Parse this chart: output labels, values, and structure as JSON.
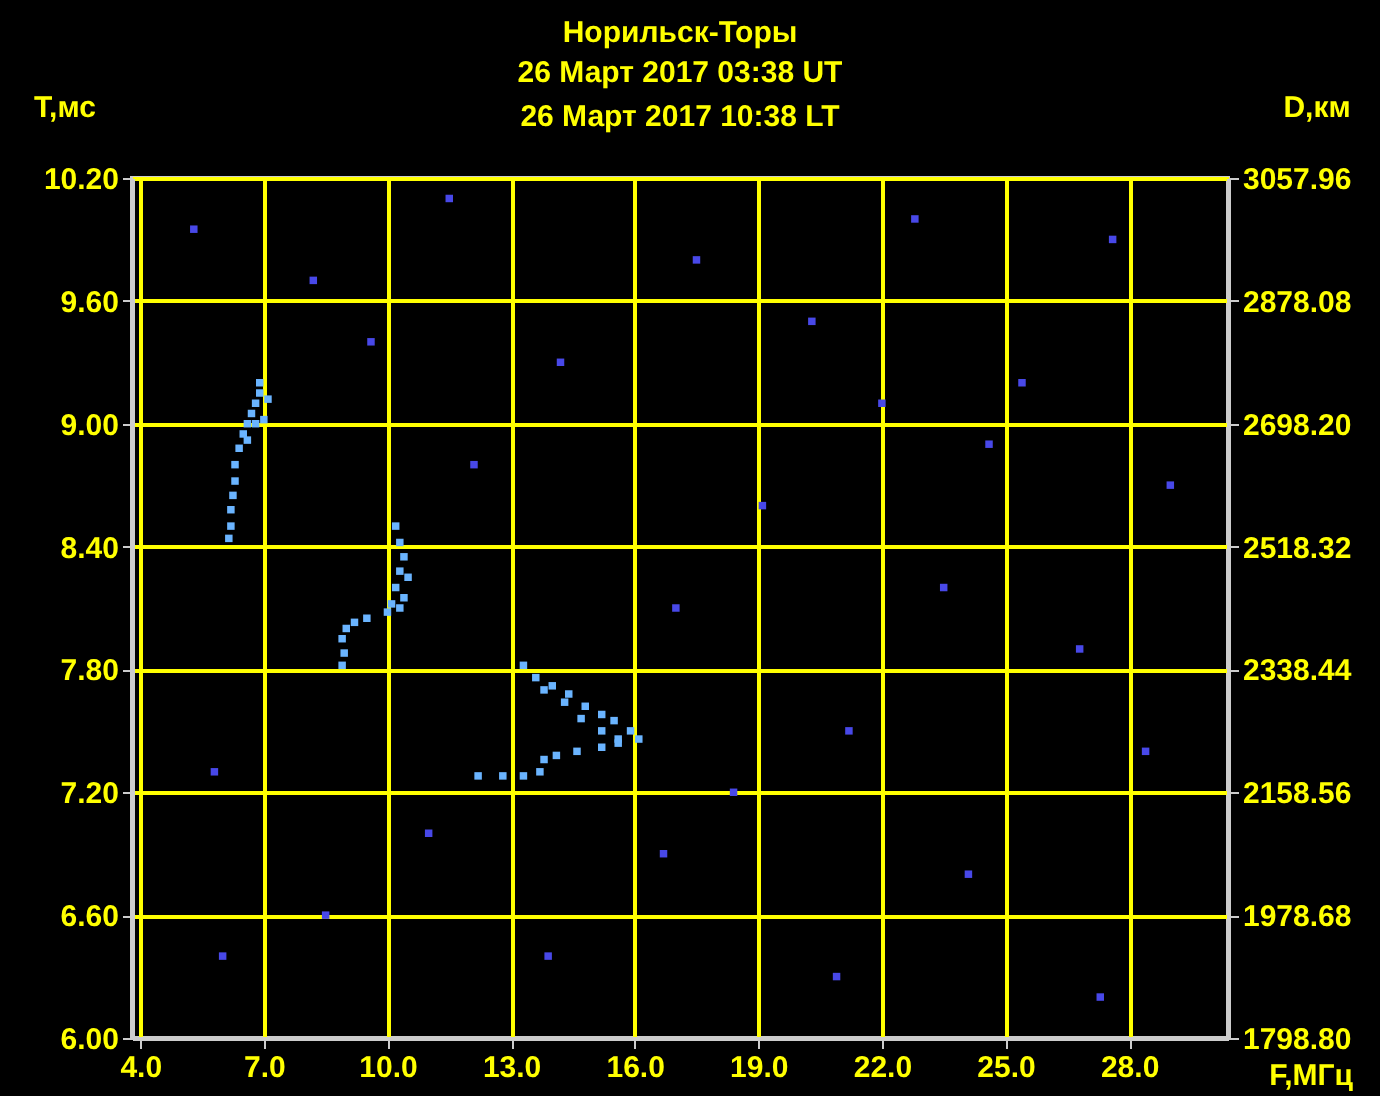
{
  "chart_data": {
    "type": "scatter",
    "title": "Норильск-Торы",
    "subtitle": "26 Март 2017 03:38 UT\n26 Март 2017 10:38 LT",
    "xlabel": "F,МГц",
    "ylabel": "T,мс",
    "y2label": "D,км",
    "xlim": [
      3.8,
      30.4
    ],
    "xticks": [
      {
        "value": 4,
        "label": "4.0"
      },
      {
        "value": 7,
        "label": "7.0"
      },
      {
        "value": 10,
        "label": "10.0"
      },
      {
        "value": 13,
        "label": "13.0"
      },
      {
        "value": 16,
        "label": "16.0"
      },
      {
        "value": 19,
        "label": "19.0"
      },
      {
        "value": 22,
        "label": "22.0"
      },
      {
        "value": 25,
        "label": "25.0"
      },
      {
        "value": 28,
        "label": "28.0"
      }
    ],
    "ylim": [
      6.0,
      10.2
    ],
    "yticks": [
      {
        "value": 6.0,
        "label": "6.00"
      },
      {
        "value": 6.6,
        "label": "6.60"
      },
      {
        "value": 7.2,
        "label": "7.20"
      },
      {
        "value": 7.8,
        "label": "7.80"
      },
      {
        "value": 8.4,
        "label": "8.40"
      },
      {
        "value": 9.0,
        "label": "9.00"
      },
      {
        "value": 9.6,
        "label": "9.60"
      },
      {
        "value": 10.2,
        "label": "10.20"
      }
    ],
    "y2lim": [
      1798.8,
      3057.96
    ],
    "y2ticks": [
      {
        "value": 1798.8,
        "label": "1798.80"
      },
      {
        "value": 1978.68,
        "label": "1978.68"
      },
      {
        "value": 2158.56,
        "label": "2158.56"
      },
      {
        "value": 2338.44,
        "label": "2338.44"
      },
      {
        "value": 2518.32,
        "label": "2518.32"
      },
      {
        "value": 2698.2,
        "label": "2698.20"
      },
      {
        "value": 2878.08,
        "label": "2878.08"
      },
      {
        "value": 3057.96,
        "label": "3057.96"
      }
    ],
    "grid": true,
    "marker": "square",
    "series": [
      {
        "color": "#6ab4ff",
        "x": [
          6.9,
          6.8,
          6.7,
          6.6,
          6.8,
          7.0,
          6.5,
          6.4,
          6.3,
          6.3,
          6.25,
          6.2,
          6.2,
          6.15,
          7.1,
          6.9,
          6.6,
          10.2,
          10.3,
          10.4,
          10.3,
          10.5,
          10.2,
          10.4,
          10.1,
          10.0,
          10.3,
          9.5,
          9.2,
          9.0,
          8.9,
          8.95,
          8.9,
          13.3,
          13.6,
          14.0,
          14.4,
          14.8,
          15.2,
          15.5,
          15.9,
          16.1,
          15.6,
          15.2,
          14.6,
          14.1,
          13.8,
          13.7,
          13.3,
          12.8,
          12.2,
          13.8,
          14.3,
          14.7,
          15.2,
          15.6
        ],
        "values": [
          9.15,
          9.1,
          9.05,
          9.0,
          9.0,
          9.02,
          8.95,
          8.88,
          8.8,
          8.72,
          8.65,
          8.58,
          8.5,
          8.44,
          9.12,
          9.2,
          8.92,
          8.5,
          8.42,
          8.35,
          8.28,
          8.25,
          8.2,
          8.15,
          8.12,
          8.08,
          8.1,
          8.05,
          8.03,
          8.0,
          7.95,
          7.88,
          7.82,
          7.82,
          7.76,
          7.72,
          7.68,
          7.62,
          7.58,
          7.55,
          7.5,
          7.46,
          7.44,
          7.42,
          7.4,
          7.38,
          7.36,
          7.3,
          7.28,
          7.28,
          7.28,
          7.7,
          7.64,
          7.56,
          7.5,
          7.46
        ]
      },
      {
        "color": "#4848e8",
        "x": [
          5.3,
          8.2,
          11.5,
          14.2,
          17.5,
          20.3,
          22.8,
          25.4,
          27.6,
          29.0,
          19.1,
          23.5,
          26.8,
          21.2,
          18.4,
          11.0,
          5.8,
          8.5,
          13.9,
          16.7,
          20.9,
          24.1,
          27.3,
          28.4,
          9.6,
          17.0,
          24.6,
          12.1,
          6.0,
          22.0
        ],
        "values": [
          9.95,
          9.7,
          10.1,
          9.3,
          9.8,
          9.5,
          10.0,
          9.2,
          9.9,
          8.7,
          8.6,
          8.2,
          7.9,
          7.5,
          7.2,
          7.0,
          7.3,
          6.6,
          6.4,
          6.9,
          6.3,
          6.8,
          6.2,
          7.4,
          9.4,
          8.1,
          8.9,
          8.8,
          6.4,
          9.1
        ]
      }
    ]
  }
}
